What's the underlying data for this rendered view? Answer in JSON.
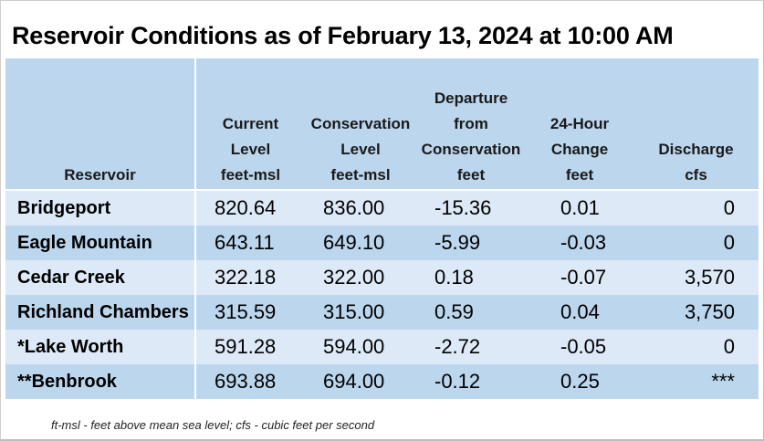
{
  "title": "Reservoir Conditions as of February 13, 2024 at 10:00 AM",
  "table": {
    "headers": [
      {
        "lines": [
          "Reservoir"
        ]
      },
      {
        "lines": [
          "Current",
          "Level",
          "feet-msl"
        ]
      },
      {
        "lines": [
          "Conservation",
          "Level",
          "feet-msl"
        ]
      },
      {
        "lines": [
          "Departure",
          "from",
          "Conservation",
          "feet"
        ]
      },
      {
        "lines": [
          "24-Hour",
          "Change",
          "feet"
        ]
      },
      {
        "lines": [
          "Discharge",
          "cfs"
        ]
      }
    ],
    "rows": [
      {
        "reservoir": "Bridgeport",
        "current": "820.64",
        "conservation": "836.00",
        "departure": "-15.36",
        "change": "0.01",
        "discharge": "0"
      },
      {
        "reservoir": "Eagle Mountain",
        "current": "643.11",
        "conservation": "649.10",
        "departure": "-5.99",
        "change": "-0.03",
        "discharge": "0"
      },
      {
        "reservoir": "Cedar Creek",
        "current": "322.18",
        "conservation": "322.00",
        "departure": "0.18",
        "change": "-0.07",
        "discharge": "3,570"
      },
      {
        "reservoir": "Richland Chambers",
        "current": "315.59",
        "conservation": "315.00",
        "departure": "0.59",
        "change": "0.04",
        "discharge": "3,750"
      },
      {
        "reservoir": "*Lake Worth",
        "current": "591.28",
        "conservation": "594.00",
        "departure": "-2.72",
        "change": "-0.05",
        "discharge": "0"
      },
      {
        "reservoir": "**Benbrook",
        "current": "693.88",
        "conservation": "694.00",
        "departure": "-0.12",
        "change": "0.25",
        "discharge": "***"
      }
    ]
  },
  "footnote": "ft-msl - feet above mean sea level; cfs - cubic feet per second",
  "colors": {
    "header_bg": "#bcd6ee",
    "row_light": "#dde9f7",
    "row_dark": "#bcd6ee",
    "divider": "#ffffff"
  }
}
